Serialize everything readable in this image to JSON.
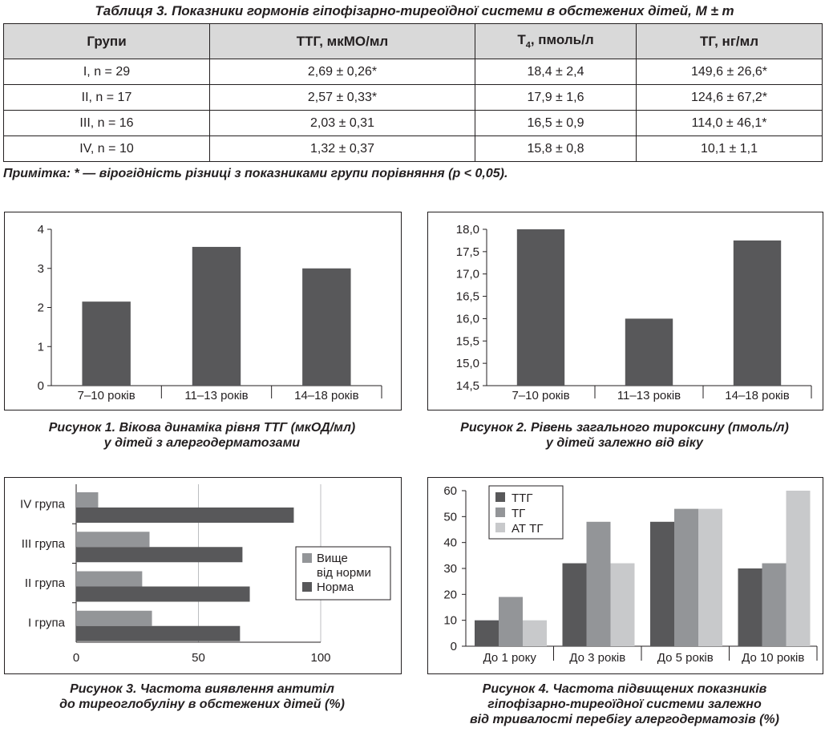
{
  "table": {
    "title": "Таблиця 3. Показники гормонів гіпофізарно-тиреоїдної системи в обстежених дітей, M ± m",
    "headers": [
      "Групи",
      "ТТГ, мкМО/мл",
      "T4, пмоль/л",
      "ТГ, нг/мл"
    ],
    "rows": [
      [
        "I, n = 29",
        "2,69 ± 0,26*",
        "18,4 ± 2,4",
        "149,6 ± 26,6*"
      ],
      [
        "II, n = 17",
        "2,57 ± 0,33*",
        "17,9 ± 1,6",
        "124,6 ± 67,2*"
      ],
      [
        "III, n = 16",
        "2,03 ± 0,31",
        "16,5 ± 0,9",
        "114,0 ± 46,1*"
      ],
      [
        "IV, n = 10",
        "1,32 ± 0,37",
        "15,8 ± 0,8",
        "10,1 ± 1,1"
      ]
    ],
    "note": "Примітка: * — вірогідність різниці з показниками групи порівняння (p < 0,05)."
  },
  "figures": {
    "fig1": [
      "Рисунок 1. Вікова динаміка рівня ТТГ (мкОД/мл)",
      "у дітей з алергодерматозами"
    ],
    "fig2": [
      "Рисунок 2. Рівень загального тироксину (пмоль/л)",
      "у дітей залежно від віку"
    ],
    "fig3": [
      "Рисунок 3. Частота виявлення антитіл",
      "до тиреоглобуліну в обстежених дітей (%)"
    ],
    "fig4": [
      "Рисунок 4. Частота підвищених показників",
      "гіпофізарно-тиреоїдної системи залежно",
      "від тривалості перебігу алергодерматозів (%)"
    ]
  },
  "colors": {
    "dark": "#58585a",
    "mid": "#939598",
    "light": "#c8c9cb",
    "axis": "#231f20",
    "grid": "#bcbec0"
  },
  "chart_data": [
    {
      "type": "bar",
      "categories": [
        "7–10 років",
        "11–13 років",
        "14–18 років"
      ],
      "values": [
        2.15,
        3.55,
        3.0
      ],
      "ylim": [
        0,
        4
      ],
      "yticks": [
        0,
        1,
        2,
        3,
        4
      ],
      "yticklabels": [
        "0",
        "1",
        "2",
        "3",
        "4"
      ],
      "grid": false
    },
    {
      "type": "bar",
      "categories": [
        "7–10 років",
        "11–13 років",
        "14–18 років"
      ],
      "values": [
        18.0,
        16.0,
        17.75
      ],
      "ylim": [
        14.5,
        18.0
      ],
      "yticks": [
        14.5,
        15.0,
        15.5,
        16.0,
        16.5,
        17.0,
        17.5,
        18.0
      ],
      "yticklabels": [
        "14,5",
        "15,0",
        "15,5",
        "16,0",
        "16,5",
        "17,0",
        "17,5",
        "18,0"
      ],
      "grid": false
    },
    {
      "type": "bar",
      "orientation": "horizontal",
      "categories": [
        "IV група",
        "III група",
        "II група",
        "I група"
      ],
      "series": [
        {
          "name": "Вище від норми",
          "values": [
            9,
            30,
            27,
            31
          ]
        },
        {
          "name": "Норма",
          "values": [
            89,
            68,
            71,
            67
          ]
        }
      ],
      "xlim": [
        0,
        100
      ],
      "xticks": [
        0,
        50,
        100
      ],
      "grid": true,
      "legend": "right"
    },
    {
      "type": "bar",
      "categories": [
        "До 1 року",
        "До 3 років",
        "До 5 років",
        "До 10 років"
      ],
      "series": [
        {
          "name": "ТТГ",
          "values": [
            10,
            32,
            48,
            30
          ]
        },
        {
          "name": "ТГ",
          "values": [
            19,
            48,
            53,
            32
          ]
        },
        {
          "name": "АТ ТГ",
          "values": [
            10,
            32,
            53,
            60
          ]
        }
      ],
      "ylim": [
        0,
        60
      ],
      "yticks": [
        0,
        10,
        20,
        30,
        40,
        50,
        60
      ],
      "grid": false,
      "legend": "top-left"
    }
  ]
}
